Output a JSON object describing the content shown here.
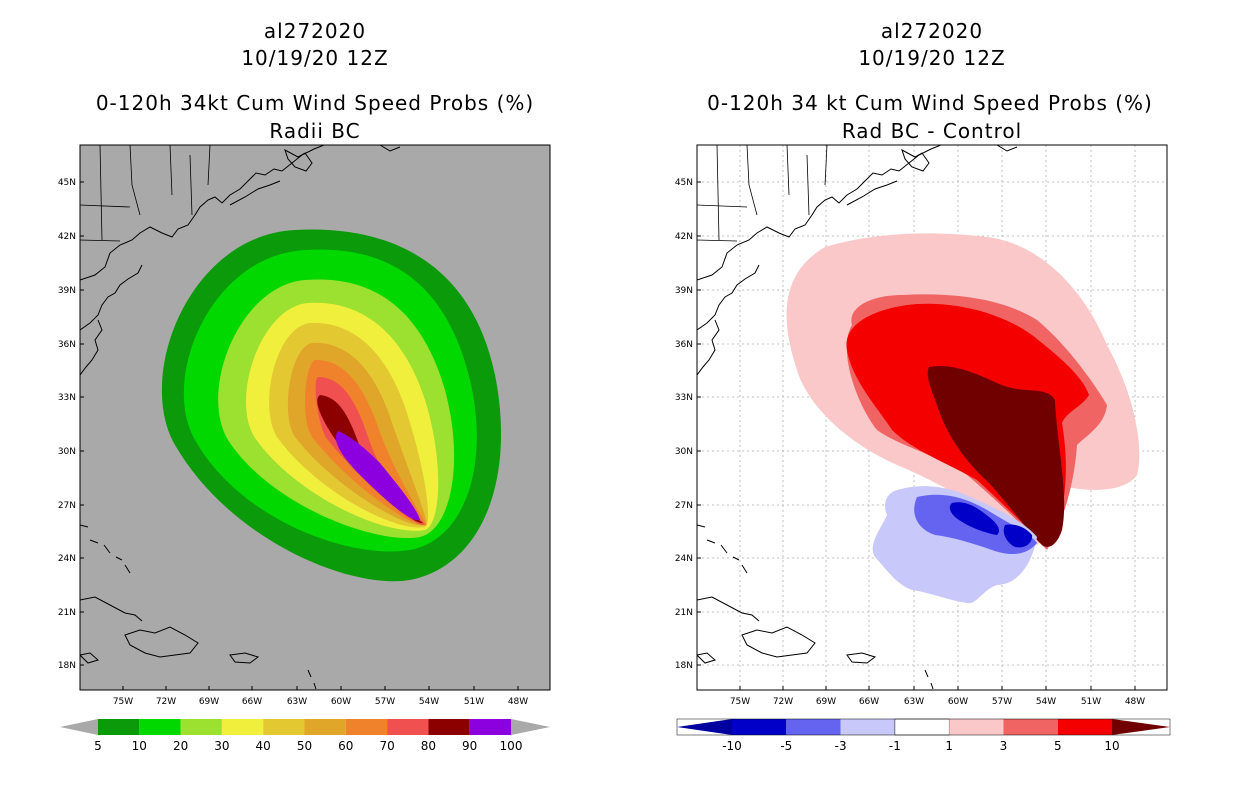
{
  "panels": [
    {
      "storm_id": "al272020",
      "datetime": "10/19/20 12Z",
      "title_line1": "0-120h 34kt Cum Wind Speed Probs (%)",
      "title_line2": "Radii BC",
      "background_color": "#a9a9a9",
      "colorbar": {
        "labels": [
          "5",
          "10",
          "20",
          "30",
          "40",
          "50",
          "60",
          "70",
          "80",
          "90",
          "100"
        ],
        "colors": [
          "#0a9a0a",
          "#00d800",
          "#9ce030",
          "#f0f03c",
          "#e4c832",
          "#e0a62a",
          "#f0822c",
          "#f05050",
          "#8c0000",
          "#8c00e0"
        ],
        "end_colors": [
          "#a9a9a9",
          "#a9a9a9"
        ]
      }
    },
    {
      "storm_id": "al272020",
      "datetime": "10/19/20 12Z",
      "title_line1": "0-120h 34 kt Cum Wind Speed Probs (%)",
      "title_line2": "Rad BC - Control",
      "background_color": "#ffffff",
      "colorbar": {
        "labels": [
          "-10",
          "-5",
          "-3",
          "-1",
          "1",
          "3",
          "5",
          "10"
        ],
        "colors": [
          "#0000c8",
          "#6464f0",
          "#c8c8fa",
          "#ffffff",
          "#fac8c8",
          "#f06464",
          "#f50000"
        ],
        "end_colors": [
          "#0000a0",
          "#700000"
        ]
      }
    }
  ],
  "axes": {
    "lon_labels": [
      "75W",
      "72W",
      "69W",
      "66W",
      "63W",
      "60W",
      "57W",
      "54W",
      "51W",
      "48W"
    ],
    "lat_labels": [
      "45N",
      "42N",
      "39N",
      "36N",
      "33N",
      "30N",
      "27N",
      "24N",
      "21N",
      "18N"
    ]
  }
}
